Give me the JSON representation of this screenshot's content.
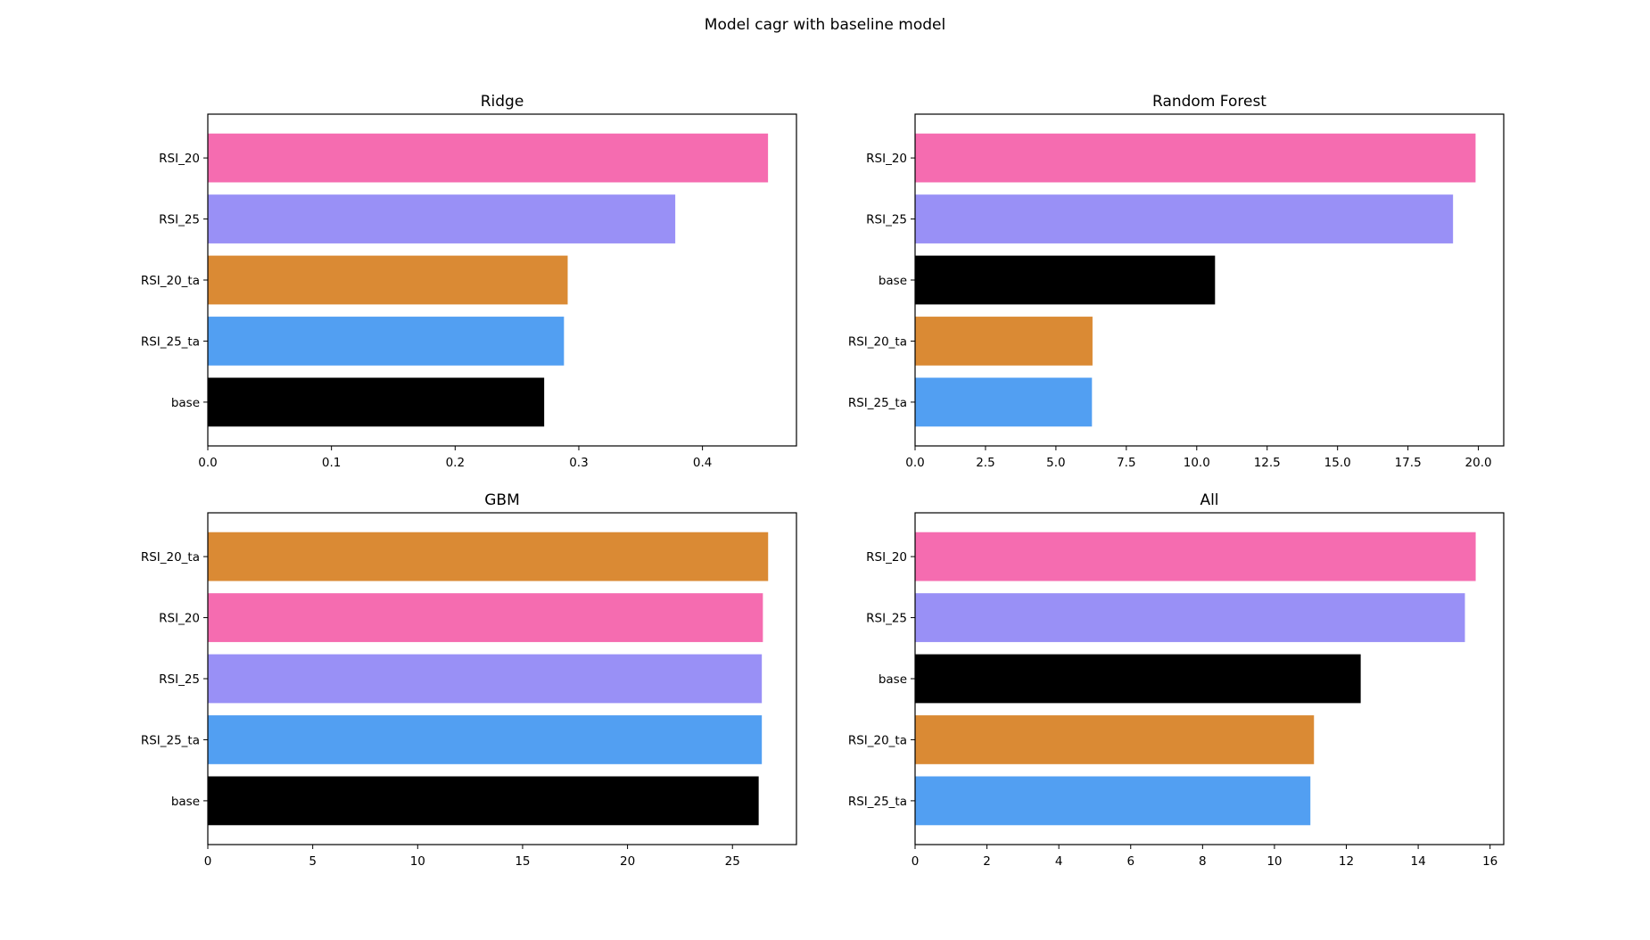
{
  "figure_title": "Model cagr with baseline model",
  "chart_data": [
    {
      "type": "bar",
      "orientation": "horizontal",
      "title": "Ridge",
      "categories": [
        "RSI_20",
        "RSI_25",
        "RSI_20_ta",
        "RSI_25_ta",
        "base"
      ],
      "values": [
        0.453,
        0.378,
        0.291,
        0.288,
        0.272
      ],
      "colors": [
        "#f56cb0",
        "#9990f6",
        "#da8a34",
        "#529ff2",
        "#000000"
      ],
      "xlim": [
        0,
        0.476
      ],
      "xticks": [
        0.0,
        0.1,
        0.2,
        0.3,
        0.4
      ],
      "xtick_labels": [
        "0.0",
        "0.1",
        "0.2",
        "0.3",
        "0.4"
      ]
    },
    {
      "type": "bar",
      "orientation": "horizontal",
      "title": "Random Forest",
      "categories": [
        "RSI_20",
        "RSI_25",
        "base",
        "RSI_20_ta",
        "RSI_25_ta"
      ],
      "values": [
        19.9,
        19.1,
        10.65,
        6.3,
        6.28
      ],
      "colors": [
        "#f56cb0",
        "#9990f6",
        "#000000",
        "#da8a34",
        "#529ff2"
      ],
      "xlim": [
        0,
        20.9
      ],
      "xticks": [
        0.0,
        2.5,
        5.0,
        7.5,
        10.0,
        12.5,
        15.0,
        17.5,
        20.0
      ],
      "xtick_labels": [
        "0.0",
        "2.5",
        "5.0",
        "7.5",
        "10.0",
        "12.5",
        "15.0",
        "17.5",
        "20.0"
      ]
    },
    {
      "type": "bar",
      "orientation": "horizontal",
      "title": "GBM",
      "categories": [
        "RSI_20_ta",
        "RSI_20",
        "RSI_25",
        "RSI_25_ta",
        "base"
      ],
      "values": [
        26.7,
        26.45,
        26.4,
        26.4,
        26.25
      ],
      "colors": [
        "#da8a34",
        "#f56cb0",
        "#9990f6",
        "#529ff2",
        "#000000"
      ],
      "xlim": [
        0,
        28.05
      ],
      "xticks": [
        0,
        5,
        10,
        15,
        20,
        25
      ],
      "xtick_labels": [
        "0",
        "5",
        "10",
        "15",
        "20",
        "25"
      ]
    },
    {
      "type": "bar",
      "orientation": "horizontal",
      "title": "All",
      "categories": [
        "RSI_20",
        "RSI_25",
        "base",
        "RSI_20_ta",
        "RSI_25_ta"
      ],
      "values": [
        15.6,
        15.3,
        12.4,
        11.1,
        11.0
      ],
      "colors": [
        "#f56cb0",
        "#9990f6",
        "#000000",
        "#da8a34",
        "#529ff2"
      ],
      "xlim": [
        0,
        16.38
      ],
      "xticks": [
        0,
        2,
        4,
        6,
        8,
        10,
        12,
        14,
        16
      ],
      "xtick_labels": [
        "0",
        "2",
        "4",
        "6",
        "8",
        "10",
        "12",
        "14",
        "16"
      ]
    }
  ]
}
